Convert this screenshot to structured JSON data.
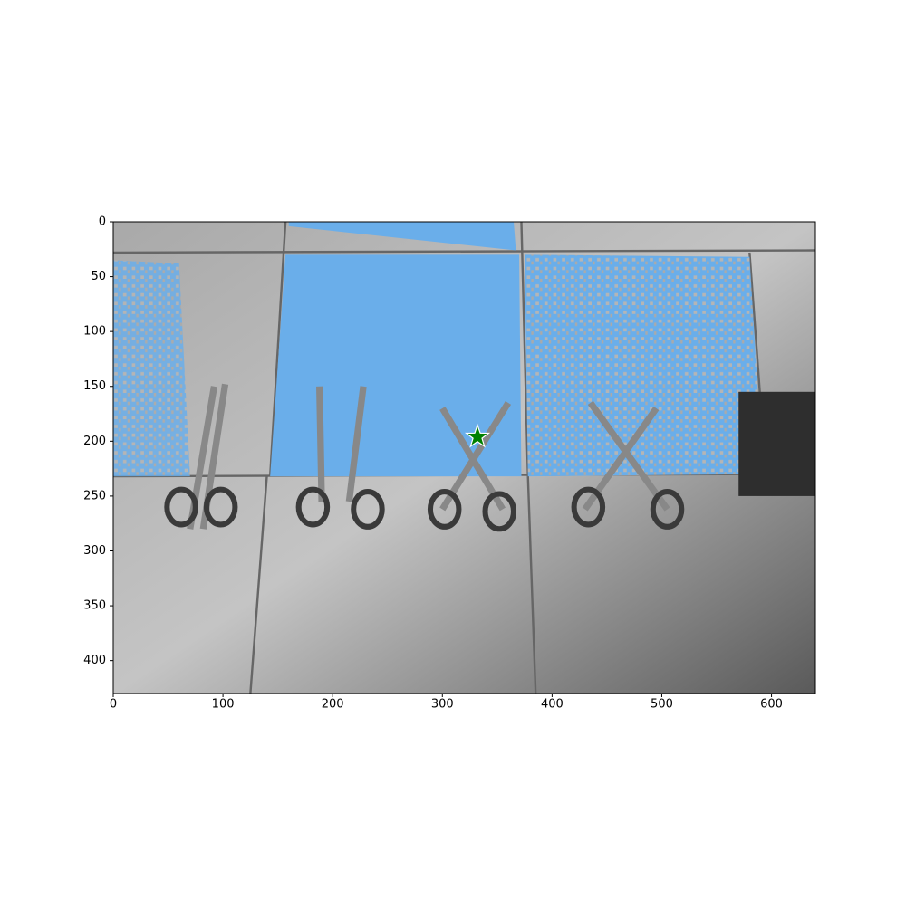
{
  "chart_data": {
    "type": "scatter",
    "xlim": [
      0,
      640
    ],
    "ylim": [
      430,
      0
    ],
    "xticks": [
      0,
      100,
      200,
      300,
      400,
      500,
      600
    ],
    "yticks": [
      0,
      50,
      100,
      150,
      200,
      250,
      300,
      350,
      400
    ],
    "series": [
      {
        "color": "#008000",
        "x": [
          332
        ],
        "values": [
          196
        ]
      }
    ]
  }
}
